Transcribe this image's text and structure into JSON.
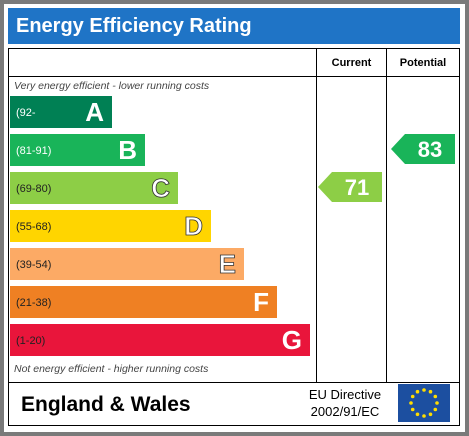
{
  "title": "Energy Efficiency Rating",
  "columns": {
    "current": "Current",
    "potential": "Potential"
  },
  "notes": {
    "top": "Very energy efficient - lower running costs",
    "bottom": "Not energy efficient - higher running costs"
  },
  "footer": {
    "region": "England & Wales",
    "directive_line1": "EU Directive",
    "directive_line2": "2002/91/EC"
  },
  "colors": {
    "title_bg": "#1f74c6",
    "eu_flag_bg": "#1c4fa0",
    "eu_star": "#ffdd00"
  },
  "chart_data": {
    "type": "bar",
    "bands": [
      {
        "range": "(92-",
        "letter": "A",
        "color": "#008054"
      },
      {
        "range": "(81-91)",
        "letter": "B",
        "color": "#19b459"
      },
      {
        "range": "(69-80)",
        "letter": "C",
        "color": "#8dce46"
      },
      {
        "range": "(55-68)",
        "letter": "D",
        "color": "#ffd500"
      },
      {
        "range": "(39-54)",
        "letter": "E",
        "color": "#fcaa65"
      },
      {
        "range": "(21-38)",
        "letter": "F",
        "color": "#ef8023"
      },
      {
        "range": "(1-20)",
        "letter": "G",
        "color": "#e9153b"
      }
    ],
    "current": {
      "value": 71,
      "band": "C",
      "color": "#8dce46"
    },
    "potential": {
      "value": 83,
      "band": "B",
      "color": "#19b459"
    }
  }
}
